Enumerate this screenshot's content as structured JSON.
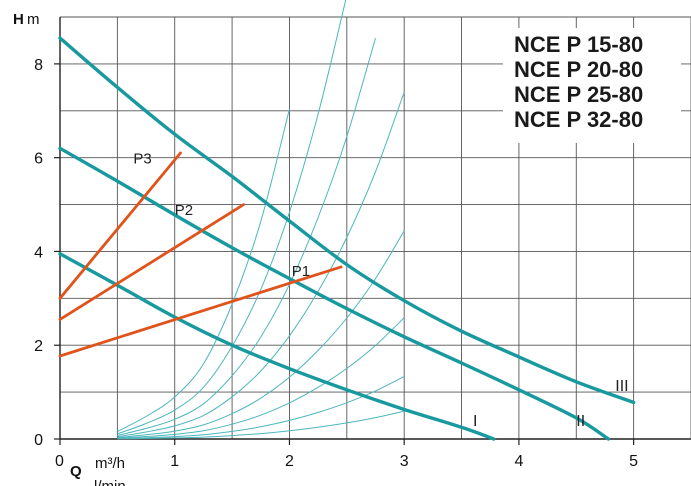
{
  "chart_data": {
    "type": "line",
    "title_lines": [
      "NCE P 15-80",
      "NCE P 20-80",
      "NCE P 25-80",
      "NCE P 32-80"
    ],
    "y_axis": {
      "symbol": "H",
      "unit": "m",
      "range": [
        0,
        9
      ],
      "ticks": [
        0,
        2,
        4,
        6,
        8
      ]
    },
    "x_axis": {
      "symbol": "Q",
      "unit": "m³/h",
      "secondary_unit": "l/min",
      "range": [
        0,
        5.5
      ],
      "ticks": [
        0,
        1,
        2,
        3,
        4,
        5
      ]
    },
    "grid": true,
    "colors": {
      "pump_curve": "#17999f",
      "system_curve": "#4cb6bc",
      "operating_line": "#e0531b",
      "grid": "#555555"
    },
    "series": [
      {
        "name": "I",
        "kind": "pump_curve",
        "x": [
          0,
          0.5,
          1,
          1.5,
          2,
          2.5,
          3,
          3.5,
          3.78
        ],
        "y": [
          3.95,
          3.28,
          2.6,
          2.0,
          1.5,
          1.05,
          0.63,
          0.25,
          0.0
        ]
      },
      {
        "name": "II",
        "kind": "pump_curve",
        "x": [
          0,
          0.5,
          1,
          1.5,
          2,
          2.5,
          3,
          3.5,
          4,
          4.5,
          4.78
        ],
        "y": [
          6.2,
          5.5,
          4.78,
          4.08,
          3.42,
          2.78,
          2.18,
          1.62,
          1.05,
          0.45,
          0.0
        ]
      },
      {
        "name": "III",
        "kind": "pump_curve",
        "x": [
          0,
          0.5,
          1,
          1.5,
          2,
          2.5,
          3,
          3.5,
          4,
          4.5,
          5
        ],
        "y": [
          8.55,
          7.5,
          6.5,
          5.6,
          4.65,
          3.72,
          2.95,
          2.3,
          1.75,
          1.22,
          0.78
        ]
      },
      {
        "name": "P1",
        "kind": "operating_line",
        "x": [
          0,
          2.45
        ],
        "y": [
          1.77,
          3.67
        ]
      },
      {
        "name": "P2",
        "kind": "operating_line",
        "x": [
          0,
          1.6
        ],
        "y": [
          2.55,
          5.0
        ]
      },
      {
        "name": "P3",
        "kind": "operating_line",
        "x": [
          0,
          1.05
        ],
        "y": [
          3.0,
          6.1
        ]
      },
      {
        "name": "",
        "kind": "system_curve",
        "x": [
          0.5,
          0.75,
          1.0,
          1.25,
          1.5,
          1.75,
          2.0,
          2.25,
          2.5,
          2.75,
          3.0
        ],
        "y": [
          0.05,
          0.15,
          0.28,
          0.5,
          0.9,
          1.45,
          2.2,
          3.15,
          4.3,
          5.7,
          7.4
        ]
      }
    ],
    "point_labels": [
      "P1",
      "P2",
      "P3"
    ],
    "curve_labels": [
      "I",
      "II",
      "III"
    ]
  }
}
